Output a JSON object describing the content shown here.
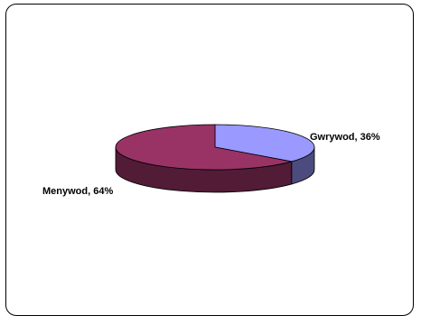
{
  "chart_data": {
    "type": "pie",
    "style": "3d",
    "slices": [
      {
        "label": "Gwrywod",
        "value": 36,
        "display": "Gwrywod, 36%",
        "color": "#9999ff",
        "side_color": "#4b4b7e"
      },
      {
        "label": "Menywod",
        "value": 64,
        "display": "Menywod, 64%",
        "color": "#993366",
        "side_color": "#521b36"
      }
    ],
    "title": "",
    "legend": "none"
  }
}
